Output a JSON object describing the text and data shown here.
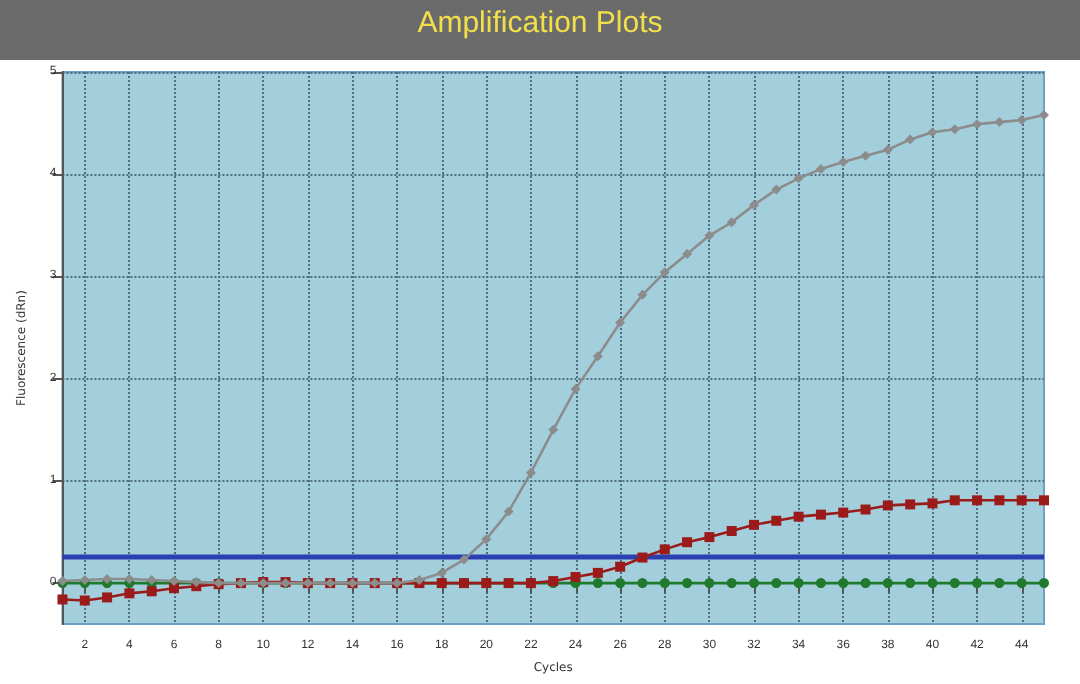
{
  "chart_data": {
    "type": "line",
    "title": "Amplification Plots",
    "xlabel": "Cycles",
    "ylabel": "Fluorescence (dRn)",
    "x": [
      1,
      2,
      3,
      4,
      5,
      6,
      7,
      8,
      9,
      10,
      11,
      12,
      13,
      14,
      15,
      16,
      17,
      18,
      19,
      20,
      21,
      22,
      23,
      24,
      25,
      26,
      27,
      28,
      29,
      30,
      31,
      32,
      33,
      34,
      35,
      36,
      37,
      38,
      39,
      40,
      41,
      42,
      43,
      44,
      45
    ],
    "series": [
      {
        "color": "#8c8c8c",
        "marker": "diamond",
        "values": [
          0.02,
          0.03,
          0.04,
          0.04,
          0.03,
          0.02,
          0.01,
          0,
          0,
          0,
          0,
          0,
          0,
          0,
          0,
          0,
          0.03,
          0.1,
          0.23,
          0.43,
          0.7,
          1.08,
          1.5,
          1.9,
          2.22,
          2.55,
          2.82,
          3.04,
          3.22,
          3.4,
          3.53,
          3.7,
          3.85,
          3.96,
          4.05,
          4.12,
          4.18,
          4.24,
          4.34,
          4.41,
          4.44,
          4.49,
          4.51,
          4.53,
          4.58
        ]
      },
      {
        "color": "#9b1b1b",
        "marker": "square",
        "values": [
          -0.16,
          -0.17,
          -0.14,
          -0.1,
          -0.08,
          -0.05,
          -0.03,
          -0.01,
          0,
          0.01,
          0.01,
          0,
          0,
          0,
          0,
          0,
          0,
          0,
          0,
          0,
          0,
          0,
          0.02,
          0.06,
          0.1,
          0.16,
          0.25,
          0.33,
          0.4,
          0.45,
          0.51,
          0.57,
          0.61,
          0.65,
          0.67,
          0.69,
          0.72,
          0.76,
          0.77,
          0.78,
          0.81,
          0.81,
          0.81,
          0.81,
          0.81
        ]
      },
      {
        "color": "#1f7a2e",
        "marker": "circle",
        "values": [
          0,
          0,
          0,
          0,
          0,
          0,
          0,
          0,
          0,
          0,
          0,
          0,
          0,
          0,
          0,
          0,
          0,
          0,
          0,
          0,
          0,
          0,
          0,
          0,
          0,
          0,
          0,
          0,
          0,
          0,
          0,
          0,
          0,
          0,
          0,
          0,
          0,
          0,
          0,
          0,
          0,
          0,
          0,
          0,
          0
        ]
      }
    ],
    "ref_lines": [
      {
        "axis": "y",
        "value": 0.27,
        "color": "#2b3fb0"
      }
    ],
    "xlim": [
      1,
      45
    ],
    "xticks": [
      2,
      4,
      6,
      8,
      10,
      12,
      14,
      16,
      18,
      20,
      22,
      24,
      26,
      28,
      30,
      32,
      34,
      36,
      38,
      40,
      42,
      44
    ],
    "ylim": [
      -0.4,
      5
    ],
    "yticks": [
      0,
      1,
      2,
      3,
      4,
      5
    ],
    "grid": true,
    "line_style": "solid"
  }
}
